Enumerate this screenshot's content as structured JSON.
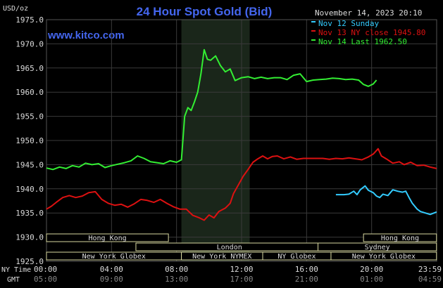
{
  "chart_data": {
    "type": "line",
    "title": "24 Hour Spot Gold (Bid)",
    "site": "www.kitco.com",
    "timestamp": "November 14, 2023 20:10",
    "ylabel": "USD/oz",
    "ylim": [
      1925.0,
      1975.0
    ],
    "ytick_step": 5,
    "y_ticks": [
      "1975.0",
      "1970.0",
      "1965.0",
      "1960.0",
      "1955.0",
      "1950.0",
      "1945.0",
      "1940.0",
      "1935.0",
      "1930.0",
      "1925.0"
    ],
    "x_ticks_ny": [
      "00:00",
      "04:00",
      "08:00",
      "12:00",
      "16:00",
      "20:00",
      "23:59"
    ],
    "x_ticks_gmt": [
      "05:00",
      "09:00",
      "13:00",
      "17:00",
      "21:00",
      "01:00",
      "04:59"
    ],
    "x_axis_labels": {
      "ny": "NY Time",
      "gmt": "GMT"
    },
    "grid": true,
    "legend_position": "top-right",
    "background_color": "#000000",
    "grid_color": "#3a3a3a",
    "highlight_color": "#1a261a",
    "highlight_range": [
      8.3,
      12.5
    ],
    "sessions": {
      "row1": [
        {
          "name": "Hong Kong",
          "start": 0,
          "end": 7.5
        },
        {
          "name": "Hong Kong",
          "start": 19.5,
          "end": 23.99
        }
      ],
      "row2": [
        {
          "name": "London",
          "start": 5.5,
          "end": 17
        },
        {
          "name": "Sydney",
          "start": 16.7,
          "end": 23.99
        }
      ],
      "row3": [
        {
          "name": "New York Globex",
          "start": 0,
          "end": 8.3
        },
        {
          "name": "New York NYMEX",
          "start": 8.3,
          "end": 13.3
        },
        {
          "name": "NY Globex",
          "start": 13.3,
          "end": 17.5
        },
        {
          "name": "New York Globex",
          "start": 17.5,
          "end": 23.99
        }
      ]
    },
    "series": [
      {
        "name": "Nov 12 Sunday",
        "color": "#33ccff",
        "points": [
          [
            17.8,
            1938.8
          ],
          [
            18.3,
            1938.8
          ],
          [
            18.6,
            1938.9
          ],
          [
            18.9,
            1939.5
          ],
          [
            19.1,
            1938.8
          ],
          [
            19.3,
            1939.8
          ],
          [
            19.6,
            1940.6
          ],
          [
            19.8,
            1939.7
          ],
          [
            20.1,
            1939.2
          ],
          [
            20.3,
            1938.5
          ],
          [
            20.5,
            1938.2
          ],
          [
            20.7,
            1938.9
          ],
          [
            21.0,
            1938.6
          ],
          [
            21.3,
            1939.8
          ],
          [
            21.6,
            1939.5
          ],
          [
            21.9,
            1939.3
          ],
          [
            22.1,
            1939.5
          ],
          [
            22.3,
            1938.2
          ],
          [
            22.5,
            1937.0
          ],
          [
            22.8,
            1935.8
          ],
          [
            23.0,
            1935.3
          ],
          [
            23.3,
            1935.0
          ],
          [
            23.6,
            1934.7
          ],
          [
            23.99,
            1935.2
          ]
        ]
      },
      {
        "name": "Nov 13 NY close 1945.80",
        "color": "#dd1111",
        "points": [
          [
            0,
            1935.8
          ],
          [
            0.3,
            1936.4
          ],
          [
            0.6,
            1937.2
          ],
          [
            1.0,
            1938.2
          ],
          [
            1.4,
            1938.6
          ],
          [
            1.8,
            1938.2
          ],
          [
            2.2,
            1938.5
          ],
          [
            2.6,
            1939.2
          ],
          [
            3.0,
            1939.4
          ],
          [
            3.4,
            1937.8
          ],
          [
            3.8,
            1937.0
          ],
          [
            4.2,
            1936.6
          ],
          [
            4.6,
            1936.8
          ],
          [
            5.0,
            1936.2
          ],
          [
            5.4,
            1936.9
          ],
          [
            5.8,
            1937.8
          ],
          [
            6.2,
            1937.6
          ],
          [
            6.6,
            1937.2
          ],
          [
            7.0,
            1937.8
          ],
          [
            7.4,
            1937.0
          ],
          [
            7.8,
            1936.3
          ],
          [
            8.2,
            1935.8
          ],
          [
            8.6,
            1935.8
          ],
          [
            9.0,
            1934.5
          ],
          [
            9.4,
            1934.0
          ],
          [
            9.7,
            1933.5
          ],
          [
            10.0,
            1934.6
          ],
          [
            10.3,
            1934.0
          ],
          [
            10.6,
            1935.3
          ],
          [
            11.0,
            1936.0
          ],
          [
            11.3,
            1937.0
          ],
          [
            11.5,
            1939.0
          ],
          [
            11.8,
            1940.8
          ],
          [
            12.1,
            1942.6
          ],
          [
            12.4,
            1944.0
          ],
          [
            12.7,
            1945.5
          ],
          [
            13.0,
            1946.2
          ],
          [
            13.3,
            1946.8
          ],
          [
            13.6,
            1946.2
          ],
          [
            13.9,
            1946.7
          ],
          [
            14.2,
            1946.8
          ],
          [
            14.6,
            1946.2
          ],
          [
            15.0,
            1946.6
          ],
          [
            15.4,
            1946.1
          ],
          [
            15.8,
            1946.3
          ],
          [
            16.2,
            1946.3
          ],
          [
            16.6,
            1946.3
          ],
          [
            17.0,
            1946.3
          ],
          [
            17.4,
            1946.1
          ],
          [
            17.8,
            1946.3
          ],
          [
            18.2,
            1946.2
          ],
          [
            18.6,
            1946.4
          ],
          [
            19.0,
            1946.2
          ],
          [
            19.4,
            1946.0
          ],
          [
            19.8,
            1946.6
          ],
          [
            20.1,
            1947.2
          ],
          [
            20.4,
            1948.3
          ],
          [
            20.6,
            1946.8
          ],
          [
            20.9,
            1946.2
          ],
          [
            21.3,
            1945.3
          ],
          [
            21.7,
            1945.6
          ],
          [
            22.0,
            1945.0
          ],
          [
            22.4,
            1945.5
          ],
          [
            22.8,
            1944.8
          ],
          [
            23.2,
            1944.9
          ],
          [
            23.6,
            1944.5
          ],
          [
            23.99,
            1944.2
          ]
        ]
      },
      {
        "name": "Nov 14 Last 1962.50",
        "color": "#33ee33",
        "points": [
          [
            0,
            1944.3
          ],
          [
            0.4,
            1944.0
          ],
          [
            0.8,
            1944.5
          ],
          [
            1.2,
            1944.2
          ],
          [
            1.6,
            1944.8
          ],
          [
            2.0,
            1944.5
          ],
          [
            2.4,
            1945.3
          ],
          [
            2.8,
            1945.0
          ],
          [
            3.2,
            1945.2
          ],
          [
            3.6,
            1944.4
          ],
          [
            4.0,
            1944.8
          ],
          [
            4.4,
            1945.1
          ],
          [
            4.8,
            1945.4
          ],
          [
            5.2,
            1945.8
          ],
          [
            5.6,
            1946.8
          ],
          [
            6.0,
            1946.3
          ],
          [
            6.4,
            1945.6
          ],
          [
            6.8,
            1945.4
          ],
          [
            7.2,
            1945.2
          ],
          [
            7.6,
            1945.8
          ],
          [
            8.0,
            1945.5
          ],
          [
            8.3,
            1946.0
          ],
          [
            8.5,
            1955.0
          ],
          [
            8.7,
            1956.8
          ],
          [
            8.9,
            1956.2
          ],
          [
            9.1,
            1958.0
          ],
          [
            9.3,
            1960.0
          ],
          [
            9.5,
            1963.8
          ],
          [
            9.7,
            1968.8
          ],
          [
            9.9,
            1966.8
          ],
          [
            10.1,
            1966.6
          ],
          [
            10.4,
            1967.5
          ],
          [
            10.7,
            1965.5
          ],
          [
            11.0,
            1964.2
          ],
          [
            11.3,
            1964.8
          ],
          [
            11.6,
            1962.4
          ],
          [
            12.0,
            1963.0
          ],
          [
            12.4,
            1963.2
          ],
          [
            12.8,
            1962.8
          ],
          [
            13.2,
            1963.1
          ],
          [
            13.6,
            1962.8
          ],
          [
            14.0,
            1963.0
          ],
          [
            14.4,
            1963.0
          ],
          [
            14.8,
            1962.6
          ],
          [
            15.2,
            1963.5
          ],
          [
            15.6,
            1963.8
          ],
          [
            16.0,
            1962.2
          ],
          [
            16.4,
            1962.5
          ],
          [
            16.8,
            1962.6
          ],
          [
            17.2,
            1962.7
          ],
          [
            17.6,
            1962.9
          ],
          [
            18.0,
            1962.8
          ],
          [
            18.4,
            1962.6
          ],
          [
            18.8,
            1962.7
          ],
          [
            19.2,
            1962.5
          ],
          [
            19.5,
            1961.6
          ],
          [
            19.8,
            1961.2
          ],
          [
            20.1,
            1961.7
          ],
          [
            20.3,
            1962.5
          ]
        ]
      }
    ]
  }
}
